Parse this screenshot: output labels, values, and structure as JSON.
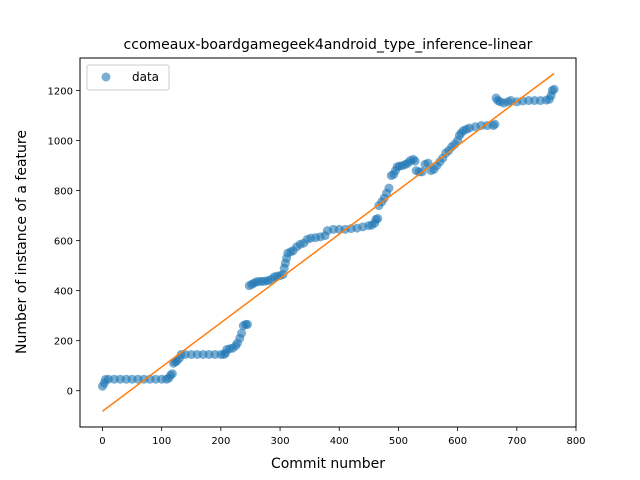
{
  "chart_data": {
    "type": "scatter",
    "title": "ccomeaux-boardgamegeek4android_type_inference-linear",
    "xlabel": "Commit number",
    "ylabel": "Number of instance of a feature",
    "xlim": [
      -38,
      800
    ],
    "ylim": [
      -145,
      1330
    ],
    "xticks": [
      0,
      100,
      200,
      300,
      400,
      500,
      600,
      700,
      800
    ],
    "yticks": [
      0,
      200,
      400,
      600,
      800,
      1000,
      1200
    ],
    "grid": false,
    "legend": {
      "placement": "top-left",
      "entries": [
        "data"
      ]
    },
    "series": [
      {
        "name": "data",
        "kind": "scatter",
        "color": "#1f77b4",
        "points": [
          [
            0,
            18
          ],
          [
            3,
            30
          ],
          [
            5,
            45
          ],
          [
            10,
            46
          ],
          [
            20,
            46
          ],
          [
            30,
            46
          ],
          [
            40,
            46
          ],
          [
            50,
            46
          ],
          [
            60,
            46
          ],
          [
            70,
            46
          ],
          [
            80,
            46
          ],
          [
            90,
            46
          ],
          [
            100,
            46
          ],
          [
            108,
            46
          ],
          [
            112,
            50
          ],
          [
            115,
            62
          ],
          [
            118,
            68
          ],
          [
            120,
            110
          ],
          [
            123,
            115
          ],
          [
            126,
            120
          ],
          [
            130,
            130
          ],
          [
            133,
            145
          ],
          [
            140,
            145
          ],
          [
            150,
            145
          ],
          [
            160,
            145
          ],
          [
            170,
            145
          ],
          [
            180,
            145
          ],
          [
            190,
            145
          ],
          [
            200,
            145
          ],
          [
            205,
            145
          ],
          [
            208,
            150
          ],
          [
            210,
            165
          ],
          [
            215,
            168
          ],
          [
            220,
            170
          ],
          [
            225,
            180
          ],
          [
            228,
            190
          ],
          [
            232,
            210
          ],
          [
            235,
            230
          ],
          [
            238,
            260
          ],
          [
            242,
            265
          ],
          [
            245,
            265
          ],
          [
            248,
            420
          ],
          [
            252,
            425
          ],
          [
            256,
            430
          ],
          [
            260,
            435
          ],
          [
            265,
            437
          ],
          [
            270,
            437
          ],
          [
            275,
            438
          ],
          [
            280,
            440
          ],
          [
            285,
            445
          ],
          [
            290,
            455
          ],
          [
            295,
            458
          ],
          [
            300,
            460
          ],
          [
            305,
            465
          ],
          [
            307,
            490
          ],
          [
            309,
            510
          ],
          [
            311,
            530
          ],
          [
            313,
            550
          ],
          [
            318,
            555
          ],
          [
            322,
            560
          ],
          [
            328,
            575
          ],
          [
            334,
            585
          ],
          [
            340,
            590
          ],
          [
            346,
            605
          ],
          [
            352,
            610
          ],
          [
            360,
            612
          ],
          [
            368,
            615
          ],
          [
            376,
            620
          ],
          [
            380,
            640
          ],
          [
            390,
            645
          ],
          [
            400,
            645
          ],
          [
            410,
            645
          ],
          [
            420,
            648
          ],
          [
            430,
            650
          ],
          [
            440,
            655
          ],
          [
            450,
            660
          ],
          [
            455,
            662
          ],
          [
            460,
            670
          ],
          [
            462,
            685
          ],
          [
            465,
            688
          ],
          [
            467,
            740
          ],
          [
            472,
            755
          ],
          [
            476,
            770
          ],
          [
            480,
            790
          ],
          [
            484,
            810
          ],
          [
            488,
            860
          ],
          [
            492,
            865
          ],
          [
            495,
            880
          ],
          [
            498,
            895
          ],
          [
            502,
            898
          ],
          [
            507,
            900
          ],
          [
            512,
            905
          ],
          [
            516,
            910
          ],
          [
            520,
            920
          ],
          [
            525,
            925
          ],
          [
            528,
            918
          ],
          [
            530,
            880
          ],
          [
            535,
            875
          ],
          [
            540,
            875
          ],
          [
            545,
            905
          ],
          [
            550,
            910
          ],
          [
            555,
            880
          ],
          [
            560,
            885
          ],
          [
            565,
            900
          ],
          [
            570,
            915
          ],
          [
            575,
            930
          ],
          [
            580,
            950
          ],
          [
            585,
            960
          ],
          [
            590,
            975
          ],
          [
            595,
            985
          ],
          [
            600,
            1000
          ],
          [
            603,
            1020
          ],
          [
            606,
            1030
          ],
          [
            610,
            1040
          ],
          [
            615,
            1045
          ],
          [
            620,
            1050
          ],
          [
            630,
            1055
          ],
          [
            640,
            1060
          ],
          [
            650,
            1060
          ],
          [
            660,
            1060
          ],
          [
            663,
            1065
          ],
          [
            665,
            1170
          ],
          [
            668,
            1160
          ],
          [
            672,
            1155
          ],
          [
            678,
            1150
          ],
          [
            685,
            1155
          ],
          [
            690,
            1160
          ],
          [
            700,
            1155
          ],
          [
            710,
            1158
          ],
          [
            720,
            1160
          ],
          [
            730,
            1160
          ],
          [
            740,
            1160
          ],
          [
            750,
            1162
          ],
          [
            755,
            1165
          ],
          [
            758,
            1180
          ],
          [
            760,
            1200
          ],
          [
            763,
            1205
          ]
        ]
      },
      {
        "name": "",
        "kind": "line",
        "color": "#ff7f0e",
        "points": [
          [
            0,
            -82
          ],
          [
            763,
            1268
          ]
        ]
      }
    ]
  }
}
